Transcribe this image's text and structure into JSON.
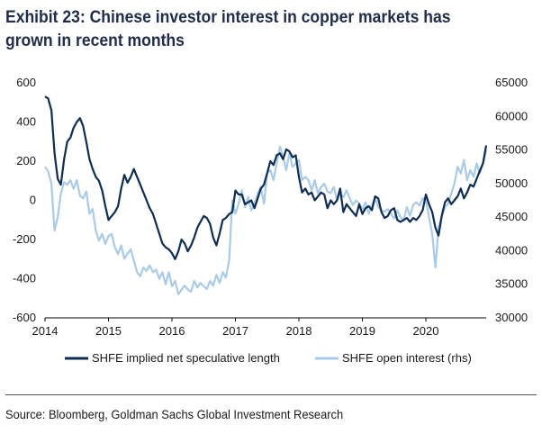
{
  "title": "Exhibit 23: Chinese investor interest in copper markets has grown in recent months",
  "source": "Source: Bloomberg, Goldman Sachs Global Investment Research",
  "colors": {
    "dark": "#0f2d52",
    "light": "#a9cbe8"
  },
  "chart_data": {
    "type": "line",
    "title": "Exhibit 23: Chinese investor interest in copper markets has grown in recent months",
    "x_ticks": [
      "2014",
      "2015",
      "2016",
      "2017",
      "2018",
      "2019",
      "2020"
    ],
    "xlim": [
      2014.0,
      2020.95
    ],
    "left_axis": {
      "ticks": [
        "600",
        "400",
        "200",
        "0",
        "-200",
        "-400",
        "-600"
      ],
      "ylim": [
        -600,
        600
      ]
    },
    "right_axis": {
      "ticks": [
        "65000",
        "60000",
        "55000",
        "50000",
        "45000",
        "40000",
        "35000",
        "30000"
      ],
      "ylim": [
        30000,
        65000
      ]
    },
    "legend_placement": "bottom",
    "series": [
      {
        "name": "SHFE implied net speculative length",
        "axis": "left",
        "color": "#0f2d52",
        "x": [
          2014.0,
          2014.05,
          2014.1,
          2014.15,
          2014.2,
          2014.25,
          2014.3,
          2014.35,
          2014.4,
          2014.45,
          2014.5,
          2014.55,
          2014.6,
          2014.65,
          2014.7,
          2014.75,
          2014.8,
          2014.85,
          2014.9,
          2014.95,
          2015.0,
          2015.05,
          2015.1,
          2015.15,
          2015.2,
          2015.25,
          2015.3,
          2015.35,
          2015.4,
          2015.45,
          2015.5,
          2015.55,
          2015.6,
          2015.65,
          2015.7,
          2015.75,
          2015.8,
          2015.85,
          2015.9,
          2015.95,
          2016.0,
          2016.05,
          2016.1,
          2016.15,
          2016.2,
          2016.25,
          2016.3,
          2016.35,
          2016.4,
          2016.45,
          2016.5,
          2016.55,
          2016.6,
          2016.65,
          2016.7,
          2016.75,
          2016.8,
          2016.85,
          2016.9,
          2016.95,
          2017.0,
          2017.05,
          2017.1,
          2017.15,
          2017.2,
          2017.25,
          2017.3,
          2017.35,
          2017.4,
          2017.45,
          2017.5,
          2017.55,
          2017.6,
          2017.65,
          2017.7,
          2017.75,
          2017.8,
          2017.85,
          2017.9,
          2017.95,
          2018.0,
          2018.05,
          2018.1,
          2018.15,
          2018.2,
          2018.25,
          2018.3,
          2018.35,
          2018.4,
          2018.45,
          2018.5,
          2018.55,
          2018.6,
          2018.65,
          2018.7,
          2018.75,
          2018.8,
          2018.85,
          2018.9,
          2018.95,
          2019.0,
          2019.05,
          2019.1,
          2019.15,
          2019.2,
          2019.25,
          2019.3,
          2019.35,
          2019.4,
          2019.45,
          2019.5,
          2019.55,
          2019.6,
          2019.65,
          2019.7,
          2019.75,
          2019.8,
          2019.85,
          2019.9,
          2019.95,
          2020.0,
          2020.05,
          2020.1,
          2020.15,
          2020.2,
          2020.25,
          2020.3,
          2020.35,
          2020.4,
          2020.45,
          2020.5,
          2020.55,
          2020.6,
          2020.65,
          2020.7,
          2020.75,
          2020.8,
          2020.85,
          2020.9,
          2020.95
        ],
        "y": [
          530,
          520,
          460,
          240,
          110,
          80,
          210,
          300,
          320,
          370,
          400,
          420,
          380,
          300,
          210,
          160,
          120,
          100,
          50,
          -30,
          -100,
          -80,
          -60,
          -30,
          60,
          130,
          90,
          120,
          160,
          120,
          80,
          40,
          0,
          -40,
          -70,
          -120,
          -170,
          -220,
          -240,
          -250,
          -270,
          -300,
          -260,
          -200,
          -220,
          -260,
          -230,
          -190,
          -140,
          -110,
          -80,
          -90,
          -120,
          -190,
          -230,
          -170,
          -100,
          -90,
          -70,
          -60,
          50,
          30,
          30,
          -20,
          -10,
          0,
          -40,
          10,
          60,
          80,
          140,
          200,
          180,
          230,
          240,
          210,
          260,
          250,
          220,
          230,
          120,
          40,
          60,
          30,
          40,
          0,
          20,
          40,
          30,
          -40,
          0,
          -20,
          0,
          60,
          -60,
          -20,
          -40,
          -60,
          -80,
          -20,
          -70,
          -40,
          -30,
          -50,
          20,
          10,
          -60,
          -90,
          -80,
          -50,
          -40,
          -100,
          -110,
          -100,
          -90,
          -110,
          -90,
          -100,
          -80,
          -50,
          30,
          -20,
          -60,
          -140,
          -180,
          -80,
          -10,
          10,
          -20,
          0,
          20,
          60,
          10,
          40,
          80,
          70,
          110,
          150,
          190,
          280
        ]
      },
      {
        "name": "SHFE open interest (rhs)",
        "axis": "right",
        "color": "#a9cbe8",
        "x": [
          2014.0,
          2014.05,
          2014.1,
          2014.15,
          2014.2,
          2014.25,
          2014.3,
          2014.35,
          2014.4,
          2014.45,
          2014.5,
          2014.55,
          2014.6,
          2014.65,
          2014.7,
          2014.75,
          2014.8,
          2014.85,
          2014.9,
          2014.95,
          2015.0,
          2015.05,
          2015.1,
          2015.15,
          2015.2,
          2015.25,
          2015.3,
          2015.35,
          2015.4,
          2015.45,
          2015.5,
          2015.55,
          2015.6,
          2015.65,
          2015.7,
          2015.75,
          2015.8,
          2015.85,
          2015.9,
          2015.95,
          2016.0,
          2016.05,
          2016.1,
          2016.15,
          2016.2,
          2016.25,
          2016.3,
          2016.35,
          2016.4,
          2016.45,
          2016.5,
          2016.55,
          2016.6,
          2016.65,
          2016.7,
          2016.75,
          2016.8,
          2016.85,
          2016.9,
          2016.95,
          2017.0,
          2017.05,
          2017.1,
          2017.15,
          2017.2,
          2017.25,
          2017.3,
          2017.35,
          2017.4,
          2017.45,
          2017.5,
          2017.55,
          2017.6,
          2017.65,
          2017.7,
          2017.75,
          2017.8,
          2017.85,
          2017.9,
          2017.95,
          2018.0,
          2018.05,
          2018.1,
          2018.15,
          2018.2,
          2018.25,
          2018.3,
          2018.35,
          2018.4,
          2018.45,
          2018.5,
          2018.55,
          2018.6,
          2018.65,
          2018.7,
          2018.75,
          2018.8,
          2018.85,
          2018.9,
          2018.95,
          2019.0,
          2019.05,
          2019.1,
          2019.15,
          2019.2,
          2019.25,
          2019.3,
          2019.35,
          2019.4,
          2019.45,
          2019.5,
          2019.55,
          2019.6,
          2019.65,
          2019.7,
          2019.75,
          2019.8,
          2019.85,
          2019.9,
          2019.95,
          2020.0,
          2020.05,
          2020.1,
          2020.15,
          2020.2,
          2020.25,
          2020.3,
          2020.35,
          2020.4,
          2020.45,
          2020.5,
          2020.55,
          2020.6,
          2020.65,
          2020.7,
          2020.75,
          2020.8,
          2020.85,
          2020.9,
          2020.95
        ],
        "y": [
          52500,
          51800,
          50000,
          43000,
          45000,
          48500,
          50200,
          49800,
          50500,
          49200,
          50500,
          48200,
          47800,
          48800,
          45500,
          46200,
          43000,
          41500,
          42500,
          41000,
          42200,
          42500,
          40500,
          39500,
          40800,
          38800,
          39600,
          40200,
          38500,
          36800,
          36200,
          37500,
          37000,
          37800,
          36800,
          37200,
          35800,
          36800,
          35000,
          36800,
          34700,
          35500,
          33500,
          34200,
          34800,
          34200,
          33900,
          35500,
          34500,
          35200,
          34700,
          34300,
          35500,
          34800,
          36400,
          35200,
          36800,
          36000,
          38500,
          47500,
          45500,
          47000,
          49000,
          46500,
          48000,
          46000,
          47000,
          48500,
          49500,
          47000,
          51500,
          52000,
          50500,
          53000,
          55500,
          54000,
          52000,
          54500,
          52500,
          53000,
          53500,
          50500,
          51000,
          50500,
          49000,
          50500,
          48500,
          49500,
          50000,
          48800,
          48600,
          49500,
          47500,
          48500,
          48000,
          49000,
          47800,
          46800,
          47500,
          47000,
          46200,
          47200,
          45500,
          46800,
          47800,
          46500,
          46000,
          45800,
          46200,
          45500,
          44800,
          46000,
          45000,
          44500,
          46500,
          45200,
          46800,
          47200,
          46700,
          47800,
          47500,
          45000,
          42500,
          37500,
          43500,
          45000,
          46500,
          47000,
          48500,
          50000,
          52500,
          51500,
          53500,
          50500,
          52000,
          51000,
          53000,
          51500,
          53000,
          55000
        ]
      }
    ]
  }
}
